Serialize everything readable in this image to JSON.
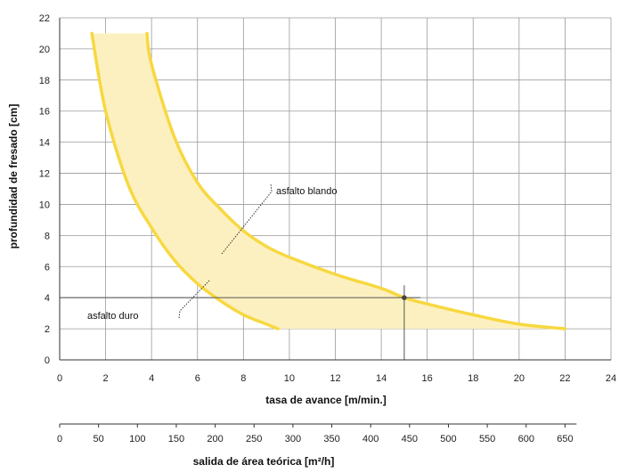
{
  "chart_data": {
    "type": "area",
    "xlabel": "tasa de avance [m/min.]",
    "ylabel": "profundidad de fresado  [cm]",
    "secondary_xlabel": "salida de área teórica  [m²/h]",
    "xlim": [
      0,
      24
    ],
    "ylim": [
      0,
      22
    ],
    "x_ticks": [
      "0",
      "2",
      "4",
      "6",
      "8",
      "10",
      "12",
      "14",
      "16",
      "18",
      "20",
      "22",
      "24"
    ],
    "y_ticks": [
      "0",
      "2",
      "4",
      "6",
      "8",
      "10",
      "12",
      "14",
      "16",
      "18",
      "20",
      "22"
    ],
    "secondary_x_ticks": [
      "0",
      "50",
      "100",
      "150",
      "200",
      "250",
      "300",
      "350",
      "400",
      "450",
      "500",
      "550",
      "600",
      "650"
    ],
    "grid": true,
    "band_color": "#fdf0c0",
    "curve_color": "#f7d840",
    "series": [
      {
        "name": "asfalto duro",
        "x": [
          1.4,
          2.0,
          3.0,
          4.0,
          5.0,
          6.0,
          7.0,
          8.0,
          9.0,
          9.5
        ],
        "y": [
          21.0,
          16.0,
          11.2,
          8.5,
          6.4,
          4.9,
          3.8,
          2.9,
          2.3,
          2.0
        ]
      },
      {
        "name": "asfalto blando",
        "x": [
          3.8,
          4.0,
          5.0,
          6.0,
          7.0,
          8.0,
          9.0,
          10.0,
          12.0,
          14.0,
          15.0,
          16.0,
          18.0,
          20.0,
          22.0
        ],
        "y": [
          21.0,
          19.0,
          14.3,
          11.4,
          9.7,
          8.3,
          7.3,
          6.6,
          5.5,
          4.6,
          4.0,
          3.6,
          2.9,
          2.3,
          2.0
        ]
      }
    ],
    "reference_point": {
      "x": 15,
      "y": 4
    },
    "annotations": [
      {
        "text": "asfalto blando"
      },
      {
        "text": "asfalto duro"
      }
    ]
  }
}
